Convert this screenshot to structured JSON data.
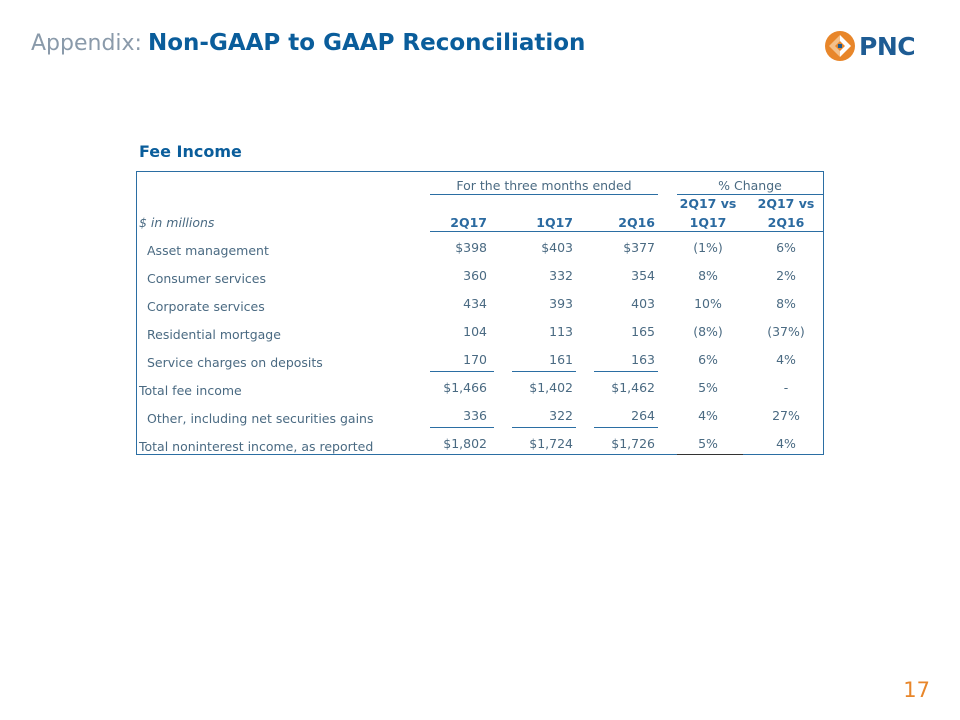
{
  "header": {
    "prefix": "Appendix:",
    "title": "Non-GAAP to GAAP Reconciliation"
  },
  "logo": {
    "wordmark": "PNC",
    "icon": "pnc-logo-icon",
    "color": "#e8862a"
  },
  "section_title": "Fee Income",
  "table": {
    "group_headers": {
      "period": "For the three months ended",
      "change": "% Change"
    },
    "units_label": "$ in millions",
    "columns": [
      "2Q17",
      "1Q17",
      "2Q16"
    ],
    "change_columns": [
      {
        "line1": "2Q17 vs",
        "line2": "1Q17"
      },
      {
        "line1": "2Q17 vs",
        "line2": "2Q16"
      }
    ],
    "rows": [
      {
        "label": "Asset management",
        "values": [
          "$398",
          "$403",
          "$377"
        ],
        "changes": [
          "(1%)",
          "6%"
        ]
      },
      {
        "label": "Consumer services",
        "values": [
          "360",
          "332",
          "354"
        ],
        "changes": [
          "8%",
          "2%"
        ]
      },
      {
        "label": "Corporate services",
        "values": [
          "434",
          "393",
          "403"
        ],
        "changes": [
          "10%",
          "8%"
        ]
      },
      {
        "label": "Residential mortgage",
        "values": [
          "104",
          "113",
          "165"
        ],
        "changes": [
          "(8%)",
          "(37%)"
        ]
      },
      {
        "label": "Service charges on deposits",
        "values": [
          "170",
          "161",
          "163"
        ],
        "changes": [
          "6%",
          "4%"
        ]
      },
      {
        "label": "Total fee income",
        "values": [
          "$1,466",
          "$1,402",
          "$1,462"
        ],
        "changes": [
          "5%",
          "-"
        ]
      },
      {
        "label": "Other, including net securities gains",
        "values": [
          "336",
          "322",
          "264"
        ],
        "changes": [
          "4%",
          "27%"
        ]
      },
      {
        "label": "Total noninterest income, as reported",
        "values": [
          "$1,802",
          "$1,724",
          "$1,726"
        ],
        "changes": [
          "5%",
          "4%"
        ]
      }
    ]
  },
  "page_number": "17"
}
